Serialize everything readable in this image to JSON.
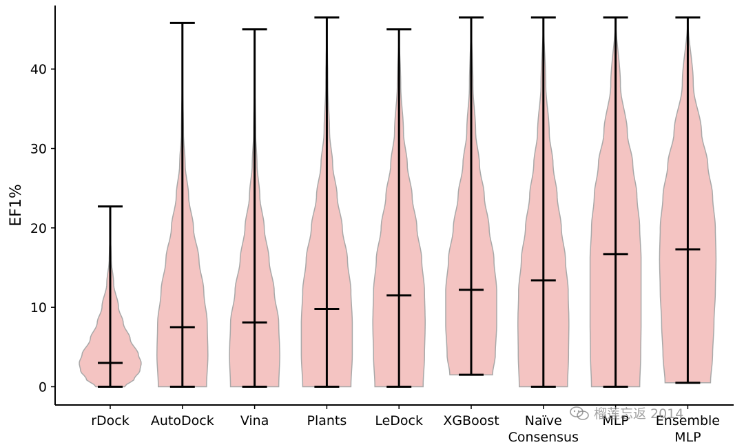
{
  "chart_data": {
    "type": "violin",
    "title": "",
    "xlabel": "",
    "ylabel": "EF1%",
    "ylim": [
      -2.3,
      48.0
    ],
    "yticks": [
      0,
      10,
      20,
      30,
      40
    ],
    "categories": [
      "rDock",
      "AutoDock",
      "Vina",
      "Plants",
      "LeDock",
      "XGBoost",
      "Naïve\nConsensus",
      "MLP",
      "Ensemble\nMLP"
    ],
    "series": [
      {
        "name": "rDock",
        "min": 0,
        "max": 22.7,
        "median": 3.0,
        "density": [
          [
            0,
            0.42
          ],
          [
            1,
            0.7
          ],
          [
            2,
            0.86
          ],
          [
            3,
            0.9
          ],
          [
            4,
            0.82
          ],
          [
            6,
            0.58
          ],
          [
            8,
            0.38
          ],
          [
            10,
            0.24
          ],
          [
            13,
            0.1
          ],
          [
            16,
            0.03
          ],
          [
            19,
            0.01
          ],
          [
            22.7,
            0
          ]
        ]
      },
      {
        "name": "AutoDock",
        "min": 0,
        "max": 45.8,
        "median": 7.5,
        "density": [
          [
            0,
            0.7
          ],
          [
            4,
            0.74
          ],
          [
            8,
            0.72
          ],
          [
            12,
            0.62
          ],
          [
            16,
            0.48
          ],
          [
            20,
            0.32
          ],
          [
            24,
            0.18
          ],
          [
            28,
            0.08
          ],
          [
            32,
            0.03
          ],
          [
            38,
            0.01
          ],
          [
            45.8,
            0
          ]
        ]
      },
      {
        "name": "Vina",
        "min": 0,
        "max": 45.0,
        "median": 8.1,
        "density": [
          [
            0,
            0.7
          ],
          [
            4,
            0.73
          ],
          [
            8,
            0.7
          ],
          [
            12,
            0.57
          ],
          [
            16,
            0.42
          ],
          [
            20,
            0.28
          ],
          [
            24,
            0.15
          ],
          [
            28,
            0.07
          ],
          [
            32,
            0.03
          ],
          [
            38,
            0.01
          ],
          [
            45.0,
            0
          ]
        ]
      },
      {
        "name": "Plants",
        "min": 0,
        "max": 46.5,
        "median": 9.8,
        "density": [
          [
            0,
            0.7
          ],
          [
            4,
            0.74
          ],
          [
            8,
            0.74
          ],
          [
            12,
            0.7
          ],
          [
            16,
            0.6
          ],
          [
            20,
            0.45
          ],
          [
            24,
            0.3
          ],
          [
            28,
            0.17
          ],
          [
            32,
            0.08
          ],
          [
            38,
            0.03
          ],
          [
            46.5,
            0
          ]
        ]
      },
      {
        "name": "LeDock",
        "min": 0,
        "max": 45.0,
        "median": 11.5,
        "density": [
          [
            0,
            0.7
          ],
          [
            4,
            0.74
          ],
          [
            8,
            0.76
          ],
          [
            12,
            0.74
          ],
          [
            16,
            0.66
          ],
          [
            20,
            0.52
          ],
          [
            24,
            0.38
          ],
          [
            28,
            0.24
          ],
          [
            32,
            0.13
          ],
          [
            38,
            0.05
          ],
          [
            45.0,
            0
          ]
        ]
      },
      {
        "name": "XGBoost",
        "min": 1.5,
        "max": 46.5,
        "median": 12.2,
        "density": [
          [
            1.5,
            0.62
          ],
          [
            4,
            0.7
          ],
          [
            8,
            0.74
          ],
          [
            12,
            0.74
          ],
          [
            16,
            0.66
          ],
          [
            20,
            0.52
          ],
          [
            24,
            0.38
          ],
          [
            28,
            0.24
          ],
          [
            32,
            0.13
          ],
          [
            38,
            0.05
          ],
          [
            46.5,
            0
          ]
        ]
      },
      {
        "name": "Naïve\nConsensus",
        "min": 0,
        "max": 46.5,
        "median": 13.4,
        "density": [
          [
            0,
            0.7
          ],
          [
            4,
            0.73
          ],
          [
            8,
            0.74
          ],
          [
            12,
            0.72
          ],
          [
            16,
            0.64
          ],
          [
            20,
            0.52
          ],
          [
            24,
            0.4
          ],
          [
            28,
            0.28
          ],
          [
            32,
            0.17
          ],
          [
            38,
            0.07
          ],
          [
            46.5,
            0
          ]
        ]
      },
      {
        "name": "MLP",
        "min": 0,
        "max": 46.5,
        "median": 16.7,
        "density": [
          [
            0,
            0.7
          ],
          [
            4,
            0.73
          ],
          [
            8,
            0.74
          ],
          [
            12,
            0.74
          ],
          [
            16,
            0.74
          ],
          [
            20,
            0.7
          ],
          [
            24,
            0.62
          ],
          [
            28,
            0.5
          ],
          [
            32,
            0.34
          ],
          [
            38,
            0.14
          ],
          [
            46.5,
            0
          ]
        ]
      },
      {
        "name": "Ensemble\nMLP",
        "min": 0.5,
        "max": 46.5,
        "median": 17.3,
        "density": [
          [
            0.5,
            0.66
          ],
          [
            4,
            0.72
          ],
          [
            8,
            0.76
          ],
          [
            12,
            0.8
          ],
          [
            16,
            0.82
          ],
          [
            20,
            0.8
          ],
          [
            24,
            0.72
          ],
          [
            28,
            0.58
          ],
          [
            32,
            0.4
          ],
          [
            38,
            0.16
          ],
          [
            46.5,
            0
          ]
        ]
      }
    ],
    "colors": {
      "fill": "#f4c4c2",
      "edge": "#a8a8a8",
      "line": "#000000"
    },
    "grid": false,
    "legend": "none"
  },
  "watermark": {
    "text": "榴莲忘返 2014",
    "icon": "wechat-icon"
  }
}
